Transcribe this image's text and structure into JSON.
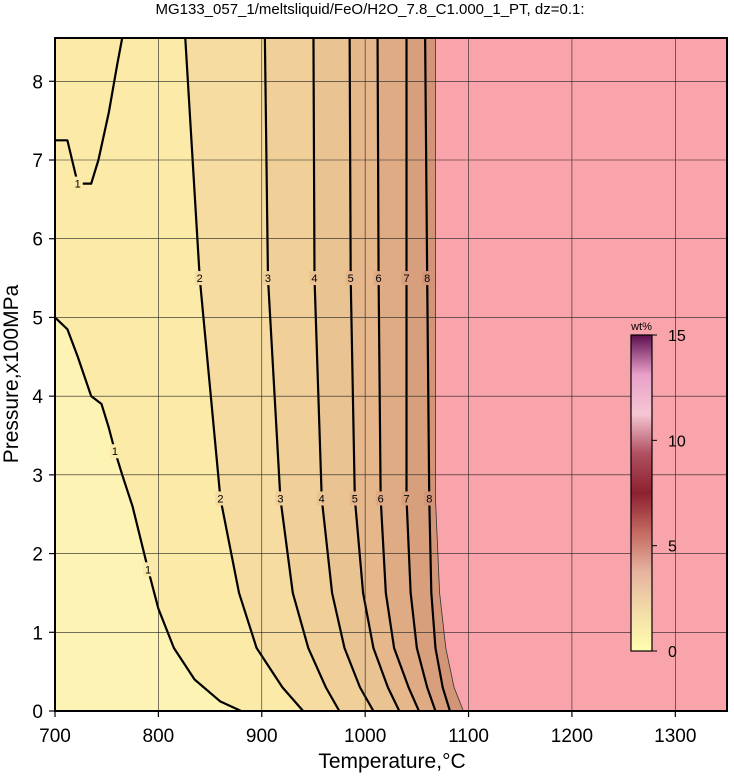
{
  "chart_data": {
    "type": "contour",
    "title": "MG133_057_1/meltsliquid/FeO/H2O_7.8_C1.000_1_PT, dz=0.1:",
    "x_label": "Temperature,°C",
    "y_label": "Pressure,x100MPa",
    "xlim": [
      700,
      1350
    ],
    "xticks": [
      700,
      800,
      900,
      1000,
      1100,
      1200,
      1300
    ],
    "ylim": [
      0,
      8.55
    ],
    "yticks": [
      0,
      1,
      2,
      3,
      4,
      5,
      6,
      7,
      8
    ],
    "grid": true,
    "background_color": "#fdf3b4",
    "fill_colors": [
      "#fbeaa8",
      "#f6dca0",
      "#f0cf99",
      "#eac392",
      "#e5b78b",
      "#dfab84",
      "#d89f7d",
      "#d29577"
    ],
    "contours": [
      {
        "level": 1,
        "x": [
          700,
          712,
          722,
          735,
          745,
          752,
          758,
          765,
          775,
          790,
          800,
          815,
          835,
          860,
          880,
          null,
          700,
          712,
          722,
          735,
          742,
          752,
          760,
          765
        ],
        "y": [
          5.0,
          4.85,
          4.5,
          4.0,
          3.9,
          3.6,
          3.3,
          3.0,
          2.6,
          1.8,
          1.3,
          0.8,
          0.4,
          0.12,
          0,
          null,
          7.25,
          7.25,
          6.7,
          6.7,
          7.0,
          7.6,
          8.2,
          8.55
        ]
      },
      {
        "level": 2,
        "x": [
          826,
          840,
          860,
          878,
          895,
          920,
          940
        ],
        "y": [
          8.55,
          5.5,
          2.7,
          1.5,
          0.8,
          0.3,
          0
        ]
      },
      {
        "level": 3,
        "x": [
          903,
          906,
          918,
          930,
          945,
          962,
          975
        ],
        "y": [
          8.55,
          5.5,
          2.7,
          1.5,
          0.8,
          0.3,
          0
        ]
      },
      {
        "level": 4,
        "x": [
          950,
          951,
          958,
          968,
          980,
          995,
          1008
        ],
        "y": [
          8.55,
          5.5,
          2.7,
          1.5,
          0.8,
          0.3,
          0
        ]
      },
      {
        "level": 5,
        "x": [
          985,
          986,
          990,
          998,
          1008,
          1022,
          1033
        ],
        "y": [
          8.55,
          5.5,
          2.7,
          1.5,
          0.8,
          0.3,
          0
        ]
      },
      {
        "level": 6,
        "x": [
          1012,
          1013,
          1015,
          1020,
          1028,
          1042,
          1052
        ],
        "y": [
          8.55,
          5.5,
          2.7,
          1.5,
          0.8,
          0.3,
          0
        ]
      },
      {
        "level": 7,
        "x": [
          1040,
          1040,
          1040,
          1044,
          1050,
          1060,
          1068
        ],
        "y": [
          8.55,
          5.5,
          2.7,
          1.5,
          0.8,
          0.3,
          0
        ]
      },
      {
        "level": 8,
        "x": [
          1058,
          1060,
          1062,
          1064,
          1068,
          1075,
          1082
        ],
        "y": [
          8.55,
          5.5,
          2.7,
          1.5,
          0.8,
          0.3,
          0
        ]
      }
    ],
    "boundary": {
      "color": "#f9a3aa",
      "x": [
        1068,
        1068,
        1068,
        1072,
        1078,
        1086,
        1095
      ],
      "y": [
        8.55,
        5.5,
        2.7,
        1.5,
        0.8,
        0.3,
        0
      ]
    },
    "colorbar": {
      "label": "wt%",
      "lim": [
        0,
        15
      ],
      "ticks": [
        0,
        5,
        10,
        15
      ],
      "colors": [
        "#fffeb0",
        "#f3dca8",
        "#e6b3a0",
        "#c46a62",
        "#8c2030",
        "#b05060",
        "#f6c6d4",
        "#e8a0c8",
        "#5c1050"
      ]
    }
  }
}
